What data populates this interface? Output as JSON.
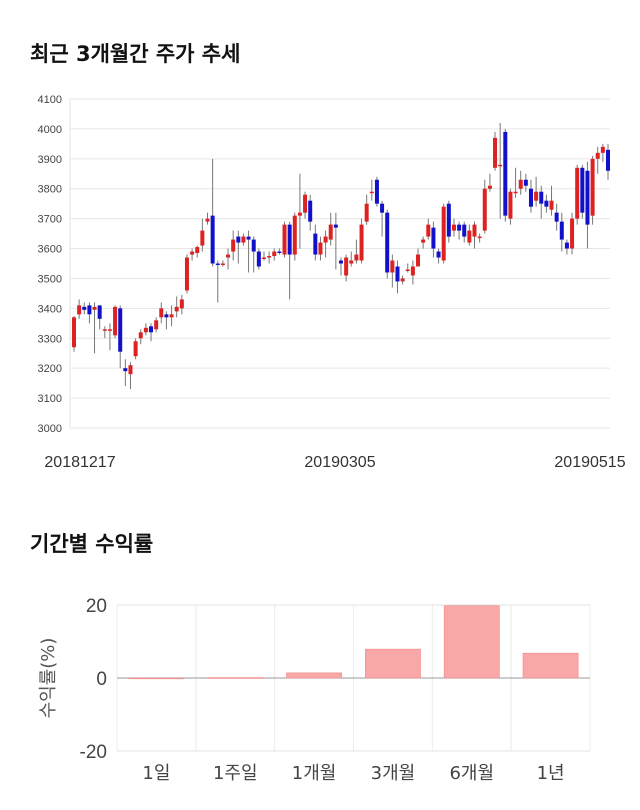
{
  "headings": {
    "price_trend": "최근 3개월간 주가 추세",
    "period_returns": "기간별 수익률"
  },
  "chart_data": [
    {
      "type": "candlestick",
      "title": "최근 3개월간 주가 추세",
      "ylim": [
        3000,
        4100
      ],
      "y_ticks": [
        3000,
        3100,
        3200,
        3300,
        3400,
        3500,
        3600,
        3700,
        3800,
        3900,
        4000,
        4100
      ],
      "x_tick_labels": [
        "20181217",
        "20190305",
        "20190515"
      ],
      "grid": true,
      "up_color": "#dd2222",
      "down_color": "#1111cc",
      "candles": [
        [
          3270,
          3370,
          3255,
          3375
        ],
        [
          3380,
          3410,
          3365,
          3430
        ],
        [
          3405,
          3395,
          3380,
          3420
        ],
        [
          3410,
          3380,
          3350,
          3420
        ],
        [
          3395,
          3405,
          3250,
          3420
        ],
        [
          3410,
          3365,
          3330,
          3410
        ],
        [
          3330,
          3330,
          3300,
          3340
        ],
        [
          3330,
          3330,
          3260,
          3350
        ],
        [
          3310,
          3405,
          3300,
          3410
        ],
        [
          3400,
          3255,
          3200,
          3410
        ],
        [
          3200,
          3190,
          3140,
          3230
        ],
        [
          3180,
          3210,
          3130,
          3220
        ],
        [
          3240,
          3290,
          3230,
          3300
        ],
        [
          3300,
          3320,
          3280,
          3330
        ],
        [
          3320,
          3335,
          3310,
          3350
        ],
        [
          3340,
          3320,
          3290,
          3350
        ],
        [
          3330,
          3360,
          3320,
          3370
        ],
        [
          3370,
          3400,
          3350,
          3420
        ],
        [
          3380,
          3370,
          3330,
          3390
        ],
        [
          3370,
          3380,
          3340,
          3410
        ],
        [
          3390,
          3405,
          3370,
          3440
        ],
        [
          3400,
          3430,
          3380,
          3445
        ],
        [
          3460,
          3570,
          3450,
          3580
        ],
        [
          3580,
          3590,
          3560,
          3600
        ],
        [
          3585,
          3605,
          3570,
          3610
        ],
        [
          3610,
          3660,
          3590,
          3700
        ],
        [
          3690,
          3700,
          3680,
          3720
        ],
        [
          3710,
          3550,
          3540,
          3900
        ],
        [
          3550,
          3545,
          3420,
          3560
        ],
        [
          3545,
          3550,
          3540,
          3560
        ],
        [
          3570,
          3580,
          3530,
          3600
        ],
        [
          3590,
          3630,
          3560,
          3660
        ],
        [
          3640,
          3620,
          3550,
          3660
        ],
        [
          3620,
          3640,
          3610,
          3650
        ],
        [
          3640,
          3630,
          3520,
          3660
        ],
        [
          3630,
          3590,
          3520,
          3640
        ],
        [
          3590,
          3540,
          3530,
          3600
        ],
        [
          3570,
          3570,
          3560,
          3590
        ],
        [
          3570,
          3575,
          3550,
          3590
        ],
        [
          3575,
          3590,
          3560,
          3600
        ],
        [
          3590,
          3585,
          3580,
          3600
        ],
        [
          3580,
          3680,
          3570,
          3690
        ],
        [
          3680,
          3580,
          3430,
          3690
        ],
        [
          3580,
          3710,
          3560,
          3720
        ],
        [
          3710,
          3720,
          3600,
          3850
        ],
        [
          3720,
          3780,
          3700,
          3790
        ],
        [
          3760,
          3690,
          3660,
          3780
        ],
        [
          3650,
          3580,
          3560,
          3680
        ],
        [
          3580,
          3620,
          3560,
          3640
        ],
        [
          3620,
          3640,
          3570,
          3660
        ],
        [
          3630,
          3680,
          3610,
          3720
        ],
        [
          3680,
          3670,
          3530,
          3720
        ],
        [
          3560,
          3550,
          3510,
          3570
        ],
        [
          3510,
          3570,
          3490,
          3580
        ],
        [
          3550,
          3560,
          3540,
          3590
        ],
        [
          3560,
          3580,
          3550,
          3630
        ],
        [
          3560,
          3680,
          3550,
          3700
        ],
        [
          3690,
          3750,
          3680,
          3780
        ],
        [
          3790,
          3790,
          3760,
          3830
        ],
        [
          3830,
          3750,
          3740,
          3840
        ],
        [
          3750,
          3720,
          3640,
          3760
        ],
        [
          3720,
          3520,
          3500,
          3730
        ],
        [
          3520,
          3560,
          3470,
          3580
        ],
        [
          3540,
          3490,
          3450,
          3560
        ],
        [
          3490,
          3500,
          3480,
          3510
        ],
        [
          3530,
          3530,
          3520,
          3550
        ],
        [
          3510,
          3540,
          3480,
          3560
        ],
        [
          3540,
          3580,
          3540,
          3600
        ],
        [
          3620,
          3630,
          3600,
          3640
        ],
        [
          3640,
          3680,
          3630,
          3700
        ],
        [
          3670,
          3600,
          3570,
          3690
        ],
        [
          3590,
          3570,
          3550,
          3600
        ],
        [
          3560,
          3740,
          3550,
          3750
        ],
        [
          3750,
          3640,
          3620,
          3760
        ],
        [
          3660,
          3680,
          3640,
          3700
        ],
        [
          3680,
          3660,
          3630,
          3690
        ],
        [
          3680,
          3640,
          3620,
          3690
        ],
        [
          3620,
          3660,
          3610,
          3680
        ],
        [
          3640,
          3680,
          3600,
          3690
        ],
        [
          3640,
          3640,
          3620,
          3650
        ],
        [
          3660,
          3800,
          3650,
          3830
        ],
        [
          3800,
          3810,
          3790,
          3850
        ],
        [
          3870,
          3970,
          3860,
          3990
        ],
        [
          3880,
          3880,
          3700,
          4020
        ],
        [
          3990,
          3710,
          3690,
          4000
        ],
        [
          3700,
          3790,
          3680,
          3800
        ],
        [
          3790,
          3790,
          3770,
          3870
        ],
        [
          3800,
          3830,
          3780,
          3860
        ],
        [
          3830,
          3810,
          3790,
          3850
        ],
        [
          3800,
          3740,
          3720,
          3830
        ],
        [
          3760,
          3790,
          3740,
          3840
        ],
        [
          3790,
          3750,
          3700,
          3810
        ],
        [
          3760,
          3740,
          3720,
          3780
        ],
        [
          3730,
          3760,
          3710,
          3810
        ],
        [
          3720,
          3690,
          3660,
          3750
        ],
        [
          3690,
          3630,
          3590,
          3720
        ],
        [
          3620,
          3600,
          3580,
          3630
        ],
        [
          3600,
          3700,
          3580,
          3720
        ],
        [
          3700,
          3870,
          3680,
          3880
        ],
        [
          3870,
          3720,
          3700,
          3880
        ],
        [
          3860,
          3680,
          3600,
          3890
        ],
        [
          3710,
          3900,
          3680,
          3910
        ],
        [
          3900,
          3920,
          3850,
          3940
        ],
        [
          3920,
          3940,
          3890,
          3950
        ],
        [
          3930,
          3860,
          3830,
          3950
        ]
      ]
    },
    {
      "type": "bar",
      "title": "기간별 수익률",
      "ylabel": "수익률(%)",
      "categories": [
        "1일",
        "1주일",
        "1개월",
        "3개월",
        "6개월",
        "1년"
      ],
      "values": [
        0,
        0.1,
        1.4,
        7.9,
        19.8,
        6.8
      ],
      "ylim": [
        -20,
        20
      ],
      "y_ticks": [
        -20,
        0,
        20
      ],
      "grid": true,
      "bar_color": "#f9a8a8"
    }
  ]
}
